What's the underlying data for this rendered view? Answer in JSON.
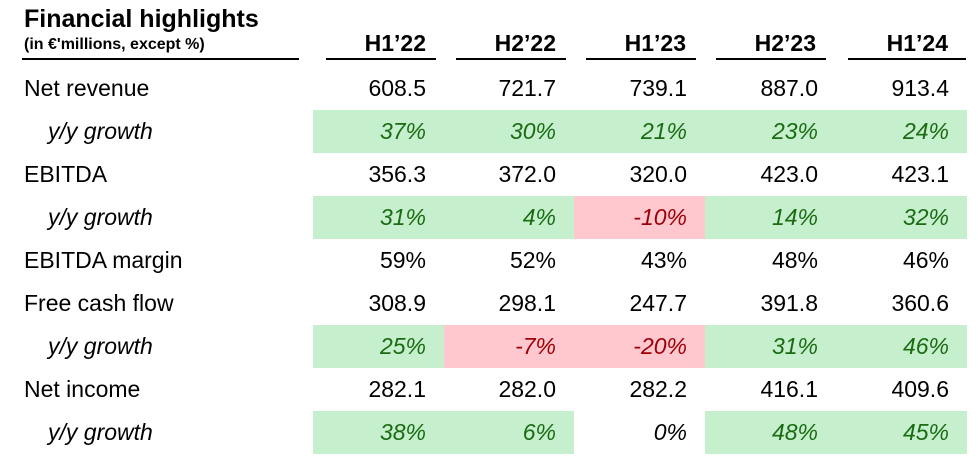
{
  "header": {
    "title": "Financial highlights",
    "subtitle": "(in €'millions, except %)"
  },
  "columns": [
    "H1’22",
    "H2’22",
    "H1’23",
    "H2’23",
    "H1’24"
  ],
  "rows": [
    {
      "label": "Net revenue",
      "kind": "main",
      "values": [
        "608.5",
        "721.7",
        "739.1",
        "887.0",
        "913.4"
      ]
    },
    {
      "label": "y/y growth",
      "kind": "sub",
      "values": [
        "37%",
        "30%",
        "21%",
        "23%",
        "24%"
      ],
      "status": [
        "pos",
        "pos",
        "pos",
        "pos",
        "pos"
      ]
    },
    {
      "label": "EBITDA",
      "kind": "main",
      "values": [
        "356.3",
        "372.0",
        "320.0",
        "423.0",
        "423.1"
      ]
    },
    {
      "label": "y/y growth",
      "kind": "sub",
      "values": [
        "31%",
        "4%",
        "-10%",
        "14%",
        "32%"
      ],
      "status": [
        "pos",
        "pos",
        "neg",
        "pos",
        "pos"
      ]
    },
    {
      "label": "EBITDA margin",
      "kind": "main",
      "values": [
        "59%",
        "52%",
        "43%",
        "48%",
        "46%"
      ]
    },
    {
      "label": "Free cash flow",
      "kind": "main",
      "values": [
        "308.9",
        "298.1",
        "247.7",
        "391.8",
        "360.6"
      ]
    },
    {
      "label": "y/y growth",
      "kind": "sub",
      "values": [
        "25%",
        "-7%",
        "-20%",
        "31%",
        "46%"
      ],
      "status": [
        "pos",
        "neg",
        "neg",
        "pos",
        "pos"
      ]
    },
    {
      "label": "Net income",
      "kind": "main",
      "values": [
        "282.1",
        "282.0",
        "282.2",
        "416.1",
        "409.6"
      ]
    },
    {
      "label": "y/y growth",
      "kind": "sub",
      "values": [
        "38%",
        "6%",
        "0%",
        "48%",
        "45%"
      ],
      "status": [
        "pos",
        "pos",
        "neu",
        "pos",
        "pos"
      ]
    }
  ],
  "colors": {
    "positive_bg": "#c6efce",
    "positive_text": "#1a6b12",
    "negative_bg": "#ffc7ce",
    "negative_text": "#9c0006"
  }
}
